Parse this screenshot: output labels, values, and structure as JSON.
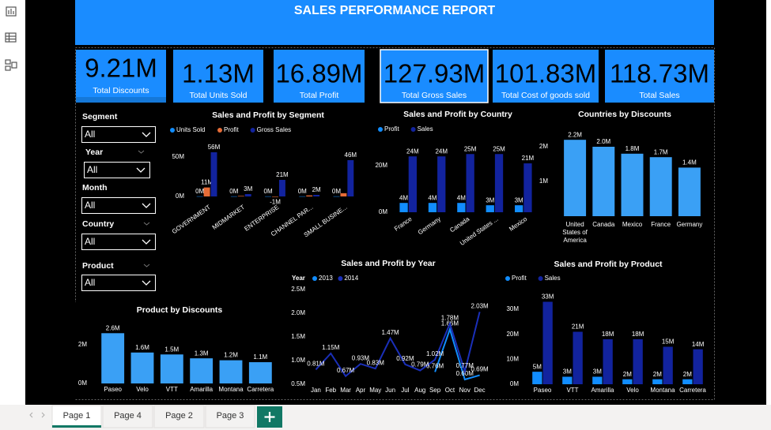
{
  "title": "SALES PERFORMANCE REPORT",
  "kpis": [
    {
      "value": "9.21M",
      "label": "Total Discounts"
    },
    {
      "value": "1.13M",
      "label": "Total Units Sold"
    },
    {
      "value": "16.89M",
      "label": "Total Profit"
    },
    {
      "value": "127.93M",
      "label": "Total Gross Sales"
    },
    {
      "value": "101.83M",
      "label": "Total Cost of goods sold"
    },
    {
      "value": "118.73M",
      "label": "Total Sales"
    }
  ],
  "slicers": [
    {
      "label": "Segment",
      "value": "All"
    },
    {
      "label": "Year",
      "value": "All"
    },
    {
      "label": "Month",
      "value": "All"
    },
    {
      "label": "Country",
      "value": "All"
    },
    {
      "label": "Product",
      "value": "All"
    }
  ],
  "tabs": [
    "Page 1",
    "Page 4",
    "Page 2",
    "Page 3"
  ],
  "chart_data": [
    {
      "type": "bar",
      "title": "Sales and Profit by Segment",
      "categories": [
        "GOVERNMENT",
        "MIDMARKET",
        "ENTERPRISE",
        "CHANNEL PAR...",
        "SMALL BUSINE..."
      ],
      "series": [
        {
          "name": "Units Sold",
          "color": "#118DFF",
          "values": [
            0.2,
            0.17,
            0.17,
            0.19,
            0.18
          ],
          "value_labels": [
            "0M",
            "0M",
            "0M",
            "0M",
            "0M"
          ]
        },
        {
          "name": "Profit",
          "color": "#E66C37",
          "values": [
            11.39,
            0.66,
            -0.61,
            1.32,
            4.14
          ],
          "value_labels": [
            "11M",
            null,
            "-1M",
            null,
            null
          ]
        },
        {
          "name": "Gross Sales",
          "color": "#12239E",
          "values": [
            56,
            3,
            21,
            2,
            46
          ],
          "value_labels": [
            "56M",
            "3M",
            "21M",
            "2M",
            "46M"
          ]
        }
      ],
      "ylim": [
        -5,
        60
      ],
      "yticks": [
        {
          "value": 0,
          "label": "0M"
        },
        {
          "value": 50,
          "label": "50M"
        }
      ]
    },
    {
      "type": "bar",
      "title": "Sales and Profit by Country",
      "categories": [
        "France",
        "Germany",
        "Canada",
        "United States ...",
        "Mexico"
      ],
      "series": [
        {
          "name": "Profit",
          "color": "#118DFF",
          "values": [
            4,
            4,
            4,
            3,
            3
          ],
          "value_labels": [
            "4M",
            "4M",
            "4M",
            "3M",
            "3M"
          ]
        },
        {
          "name": "Sales",
          "color": "#12239E",
          "values": [
            24,
            24,
            25,
            25,
            21
          ],
          "value_labels": [
            "24M",
            "24M",
            "25M",
            "25M",
            "21M"
          ]
        }
      ],
      "ylim": [
        0,
        30
      ],
      "yticks": [
        {
          "value": 0,
          "label": "0M"
        },
        {
          "value": 20,
          "label": "20M"
        }
      ]
    },
    {
      "type": "bar",
      "title": "Countries by Discounts",
      "categories": [
        "United States of America",
        "Canada",
        "Mexico",
        "France",
        "Germany"
      ],
      "values": [
        2.2,
        2.0,
        1.8,
        1.7,
        1.4
      ],
      "value_labels": [
        "2.2M",
        "2.0M",
        "1.8M",
        "1.7M",
        "1.4M"
      ],
      "color": "#3AA0F5",
      "ylim": [
        0,
        2.5
      ],
      "yticks": [
        {
          "value": 1,
          "label": "1M"
        },
        {
          "value": 2,
          "label": "2M"
        }
      ]
    },
    {
      "type": "bar",
      "title": "Product by Discounts",
      "categories": [
        "Paseo",
        "Velo",
        "VTT",
        "Amarilla",
        "Montana",
        "Carretera"
      ],
      "values": [
        2.6,
        1.6,
        1.5,
        1.3,
        1.2,
        1.1
      ],
      "value_labels": [
        "2.6M",
        "1.6M",
        "1.5M",
        "1.3M",
        "1.2M",
        "1.1M"
      ],
      "color": "#3AA0F5",
      "ylim": [
        0,
        3
      ],
      "yticks": [
        {
          "value": 0,
          "label": "0M"
        },
        {
          "value": 2,
          "label": "2M"
        }
      ]
    },
    {
      "type": "line",
      "title": "Sales and Profit by Year",
      "legend_title": "Year",
      "categories": [
        "Jan",
        "Feb",
        "Mar",
        "Apr",
        "May",
        "Jun",
        "Jul",
        "Aug",
        "Sep",
        "Oct",
        "Nov",
        "Dec"
      ],
      "series": [
        {
          "name": "2013",
          "color": "#118DFF",
          "values": [
            null,
            null,
            null,
            null,
            null,
            null,
            null,
            null,
            0.76,
            1.66,
            0.6,
            0.69
          ],
          "value_labels": [
            null,
            null,
            null,
            null,
            null,
            null,
            null,
            null,
            "0.76M",
            "1.66M",
            "0.60M",
            "0.69M"
          ]
        },
        {
          "name": "2014",
          "color": "#1A2FB8",
          "values": [
            0.81,
            1.15,
            0.67,
            0.93,
            0.83,
            1.47,
            0.92,
            0.79,
            1.02,
            1.78,
            0.77,
            2.03
          ],
          "value_labels": [
            "0.81M",
            "1.15M",
            "0.67M",
            "0.93M",
            "0.83M",
            "1.47M",
            "0.92M",
            "0.79M",
            "1.02M",
            "1.78M",
            "0.77M",
            "2.03M"
          ]
        }
      ],
      "ylim": [
        0.5,
        2.5
      ],
      "yticks": [
        {
          "value": 0.5,
          "label": "0.5M"
        },
        {
          "value": 1.0,
          "label": "1.0M"
        },
        {
          "value": 1.5,
          "label": "1.5M"
        },
        {
          "value": 2.0,
          "label": "2.0M"
        },
        {
          "value": 2.5,
          "label": "2.5M"
        }
      ]
    },
    {
      "type": "bar",
      "title": "Sales and Profit by Product",
      "categories": [
        "Paseo",
        "VTT",
        "Amarilla",
        "Velo",
        "Montana",
        "Carretera"
      ],
      "series": [
        {
          "name": "Profit",
          "color": "#118DFF",
          "values": [
            5,
            3,
            3,
            2,
            2,
            2
          ],
          "value_labels": [
            "5M",
            "3M",
            "3M",
            "2M",
            "2M",
            "2M"
          ]
        },
        {
          "name": "Sales",
          "color": "#12239E",
          "values": [
            33,
            21,
            18,
            18,
            15,
            14
          ],
          "value_labels": [
            "33M",
            "21M",
            "18M",
            "18M",
            "15M",
            "14M"
          ]
        }
      ],
      "ylim": [
        0,
        36
      ],
      "yticks": [
        {
          "value": 0,
          "label": "0M"
        },
        {
          "value": 10,
          "label": "10M"
        },
        {
          "value": 20,
          "label": "20M"
        },
        {
          "value": 30,
          "label": "30M"
        }
      ]
    }
  ]
}
